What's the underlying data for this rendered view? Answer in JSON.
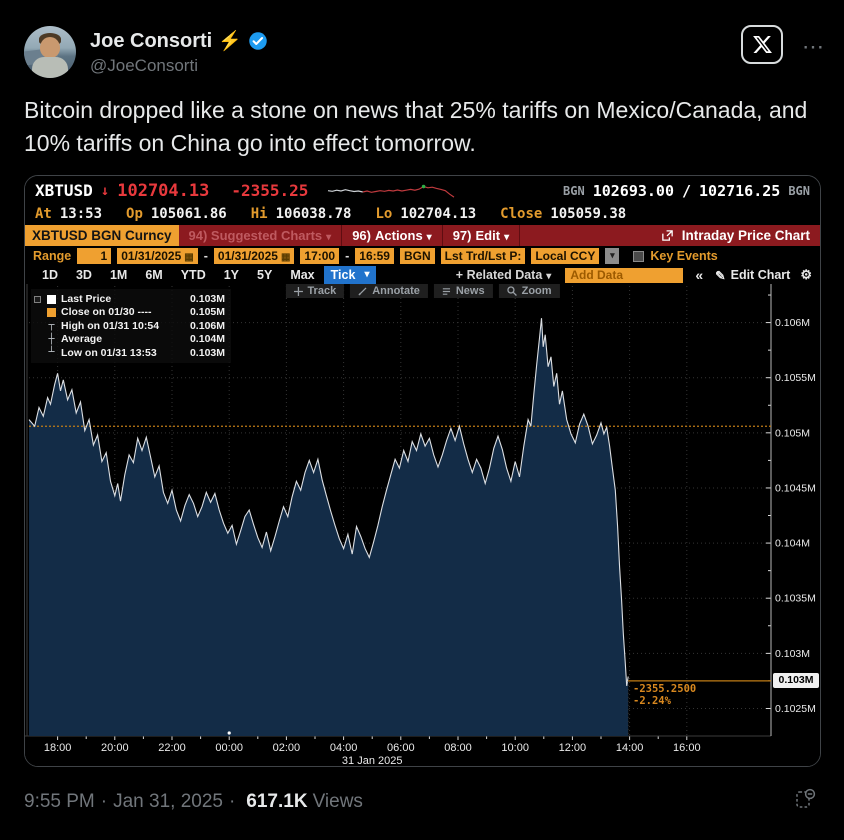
{
  "tweet": {
    "author": {
      "name": "Joe Consorti",
      "zap": "⚡",
      "handle": "@JoeConsorti"
    },
    "text": "Bitcoin dropped like a stone on news that 25% tariffs on Mexico/Canada, and 10% tariffs on China go into effect tomorrow.",
    "footer": {
      "time": "9:55 PM",
      "sep": "·",
      "date": "Jan 31, 2025",
      "views_count": "617.1K",
      "views_label": "Views"
    }
  },
  "icons": {
    "more": "⋯",
    "gear": "⚙",
    "pencil": "✎",
    "collapse": "«",
    "dropdown": "▾",
    "calendar": "▦",
    "down_arrow": "↓"
  },
  "terminal": {
    "quote": {
      "ticker": "XBTUSD",
      "direction_arrow": "↓",
      "last": "102704.13",
      "change": "-2355.25",
      "src_left": "BGN",
      "bid": "102693.00",
      "slash": "/",
      "ask": "102716.25",
      "src_right": "BGN",
      "at_label": "At",
      "at_value": "13:53",
      "open_label": "Op",
      "open_value": "105061.86",
      "high_label": "Hi",
      "high_value": "106038.78",
      "low_label": "Lo",
      "low_value": "102704.13",
      "close_label": "Close",
      "close_value": "105059.38",
      "spark": [
        0.52,
        0.48,
        0.55,
        0.5,
        0.58,
        0.52,
        0.47,
        0.5,
        0.44,
        0.5,
        0.42,
        0.47,
        0.52,
        0.48,
        0.54,
        0.5,
        0.56,
        0.5,
        0.55,
        0.6,
        0.55,
        0.62,
        0.78,
        0.7,
        0.74,
        0.66,
        0.6,
        0.52,
        0.3,
        0.12
      ]
    },
    "menubar": {
      "security": "XBTUSD BGN Curncy",
      "suggested": "94) Suggested Charts",
      "actions_num": "96)",
      "actions": "Actions",
      "edit_num": "97)",
      "edit": "Edit",
      "chart_title": "Intraday Price Chart"
    },
    "rangebar": {
      "range_label": "Range",
      "range_value": "1",
      "date_from": "01/31/2025",
      "date_sep": "-",
      "date_to": "01/31/2025",
      "time_from": "17:00",
      "time_sep": "-",
      "time_to": "16:59",
      "source": "BGN",
      "price_field": "Lst Trd/Lst P:",
      "currency": "Local CCY",
      "key_events_label": "Key Events"
    },
    "periodbar": {
      "tabs": [
        "1D",
        "3D",
        "1M",
        "6M",
        "YTD",
        "1Y",
        "5Y",
        "Max"
      ],
      "selected_tab": "Tick",
      "related_data": "+ Related Data",
      "add_data_placeholder": "Add Data",
      "edit_chart": "Edit Chart"
    },
    "chart_toolbar": [
      "Track",
      "Annotate",
      "News",
      "Zoom"
    ]
  },
  "chart_data": {
    "type": "area",
    "title": "Intraday Price Chart",
    "instrument": "XBTUSD",
    "x_date_label": "31 Jan 2025",
    "x_axis": [
      {
        "label": "18:00",
        "t": 1
      },
      {
        "label": "20:00",
        "t": 3
      },
      {
        "label": "22:00",
        "t": 5
      },
      {
        "label": "00:00",
        "t": 7
      },
      {
        "label": "02:00",
        "t": 9
      },
      {
        "label": "04:00",
        "t": 11
      },
      {
        "label": "06:00",
        "t": 13
      },
      {
        "label": "08:00",
        "t": 15
      },
      {
        "label": "10:00",
        "t": 17
      },
      {
        "label": "12:00",
        "t": 19
      },
      {
        "label": "14:00",
        "t": 21
      },
      {
        "label": "16:00",
        "t": 23
      }
    ],
    "y_axis": [
      {
        "label": "0.106M",
        "value": 106000
      },
      {
        "label": "0.1055M",
        "value": 105500
      },
      {
        "label": "0.105M",
        "value": 105000
      },
      {
        "label": "0.1045M",
        "value": 104500
      },
      {
        "label": "0.104M",
        "value": 104000
      },
      {
        "label": "0.1035M",
        "value": 103500
      },
      {
        "label": "0.103M",
        "value": 103000
      },
      {
        "label": "0.1025M",
        "value": 102500
      }
    ],
    "y_range": [
      102250,
      106350
    ],
    "prev_close": 105059.38,
    "high": {
      "time": "10:54",
      "value": 106038.78
    },
    "low": {
      "time": "13:53",
      "value": 102704.13
    },
    "annotation": {
      "price": 102750,
      "change": "-2355.2500",
      "pct": "-2.24%"
    },
    "last_badge": "0.103M",
    "legend": [
      {
        "marker": "white-square",
        "label": "Last Price",
        "value": "0.103M"
      },
      {
        "marker": "orange-square",
        "label": "Close on 01/30 ----",
        "value": "0.105M"
      },
      {
        "marker": "high",
        "label": "High on 01/31 10:54",
        "value": "0.106M"
      },
      {
        "marker": "avg",
        "label": "Average",
        "value": "0.104M"
      },
      {
        "marker": "low",
        "label": "Low on 01/31 13:53",
        "value": "0.103M"
      }
    ],
    "colors": {
      "line": "#dcdfe3",
      "fill": "#132c47",
      "close_line": "#c07c16",
      "annotation": "#d8881f",
      "grid": "#343434",
      "tick_blue": "#2173cc",
      "bar_red": "#8c1a1f",
      "field_amber": "#efa030",
      "price_red": "#e8393d"
    },
    "series": [
      {
        "name": "Last Price",
        "points": [
          [
            0,
            105120
          ],
          [
            0.2,
            105060
          ],
          [
            0.35,
            105230
          ],
          [
            0.5,
            105150
          ],
          [
            0.65,
            105320
          ],
          [
            0.75,
            105260
          ],
          [
            0.9,
            105440
          ],
          [
            1,
            105540
          ],
          [
            1.1,
            105380
          ],
          [
            1.2,
            105480
          ],
          [
            1.35,
            105300
          ],
          [
            1.5,
            105390
          ],
          [
            1.65,
            105180
          ],
          [
            1.8,
            105280
          ],
          [
            1.95,
            105020
          ],
          [
            2.1,
            105120
          ],
          [
            2.25,
            104890
          ],
          [
            2.4,
            104980
          ],
          [
            2.55,
            104740
          ],
          [
            2.7,
            104820
          ],
          [
            2.85,
            104560
          ],
          [
            3,
            104430
          ],
          [
            3.1,
            104540
          ],
          [
            3.2,
            104380
          ],
          [
            3.35,
            104620
          ],
          [
            3.5,
            104800
          ],
          [
            3.65,
            104730
          ],
          [
            3.8,
            104950
          ],
          [
            3.95,
            104840
          ],
          [
            4.1,
            104960
          ],
          [
            4.25,
            104780
          ],
          [
            4.4,
            104600
          ],
          [
            4.55,
            104700
          ],
          [
            4.7,
            104460
          ],
          [
            4.85,
            104360
          ],
          [
            5,
            104480
          ],
          [
            5.15,
            104300
          ],
          [
            5.3,
            104200
          ],
          [
            5.45,
            104340
          ],
          [
            5.6,
            104440
          ],
          [
            5.75,
            104360
          ],
          [
            5.9,
            104240
          ],
          [
            6.05,
            104330
          ],
          [
            6.2,
            104460
          ],
          [
            6.35,
            104370
          ],
          [
            6.5,
            104450
          ],
          [
            6.65,
            104300
          ],
          [
            6.8,
            104180
          ],
          [
            6.95,
            104090
          ],
          [
            7.1,
            104160
          ],
          [
            7.25,
            103990
          ],
          [
            7.4,
            104110
          ],
          [
            7.55,
            104240
          ],
          [
            7.7,
            104300
          ],
          [
            7.85,
            104170
          ],
          [
            8,
            104050
          ],
          [
            8.15,
            103960
          ],
          [
            8.3,
            104100
          ],
          [
            8.45,
            103930
          ],
          [
            8.6,
            104060
          ],
          [
            8.75,
            104200
          ],
          [
            8.9,
            104330
          ],
          [
            9.05,
            104240
          ],
          [
            9.2,
            104420
          ],
          [
            9.35,
            104560
          ],
          [
            9.5,
            104480
          ],
          [
            9.65,
            104640
          ],
          [
            9.8,
            104750
          ],
          [
            9.95,
            104640
          ],
          [
            10.1,
            104760
          ],
          [
            10.25,
            104570
          ],
          [
            10.4,
            104430
          ],
          [
            10.55,
            104290
          ],
          [
            10.7,
            104160
          ],
          [
            10.85,
            104040
          ],
          [
            11,
            103950
          ],
          [
            11.15,
            104080
          ],
          [
            11.3,
            103900
          ],
          [
            11.45,
            104150
          ],
          [
            11.6,
            104060
          ],
          [
            11.75,
            103950
          ],
          [
            11.9,
            103870
          ],
          [
            12.05,
            104010
          ],
          [
            12.2,
            104160
          ],
          [
            12.35,
            104330
          ],
          [
            12.5,
            104480
          ],
          [
            12.65,
            104620
          ],
          [
            12.8,
            104760
          ],
          [
            12.95,
            104680
          ],
          [
            13.1,
            104840
          ],
          [
            13.25,
            104740
          ],
          [
            13.4,
            104920
          ],
          [
            13.55,
            104840
          ],
          [
            13.7,
            104990
          ],
          [
            13.85,
            104880
          ],
          [
            14,
            104950
          ],
          [
            14.15,
            104800
          ],
          [
            14.3,
            104690
          ],
          [
            14.45,
            104800
          ],
          [
            14.6,
            104930
          ],
          [
            14.75,
            105040
          ],
          [
            14.9,
            104930
          ],
          [
            15.05,
            105060
          ],
          [
            15.2,
            104900
          ],
          [
            15.35,
            104760
          ],
          [
            15.5,
            104640
          ],
          [
            15.65,
            104760
          ],
          [
            15.8,
            104680
          ],
          [
            15.95,
            104540
          ],
          [
            16.1,
            104680
          ],
          [
            16.25,
            104860
          ],
          [
            16.4,
            104970
          ],
          [
            16.55,
            104850
          ],
          [
            16.7,
            104680
          ],
          [
            16.85,
            104560
          ],
          [
            17,
            104740
          ],
          [
            17.15,
            104600
          ],
          [
            17.3,
            104880
          ],
          [
            17.45,
            105120
          ],
          [
            17.55,
            105060
          ],
          [
            17.65,
            105350
          ],
          [
            17.75,
            105620
          ],
          [
            17.85,
            105860
          ],
          [
            17.92,
            106040
          ],
          [
            17.98,
            105780
          ],
          [
            18.05,
            105890
          ],
          [
            18.15,
            105600
          ],
          [
            18.25,
            105690
          ],
          [
            18.35,
            105420
          ],
          [
            18.45,
            105540
          ],
          [
            18.55,
            105260
          ],
          [
            18.65,
            105380
          ],
          [
            18.8,
            105120
          ],
          [
            18.95,
            104990
          ],
          [
            19.1,
            104910
          ],
          [
            19.25,
            105080
          ],
          [
            19.4,
            105170
          ],
          [
            19.55,
            105060
          ],
          [
            19.7,
            104900
          ],
          [
            19.85,
            104980
          ],
          [
            20,
            105090
          ],
          [
            20.1,
            104990
          ],
          [
            20.2,
            105050
          ],
          [
            20.3,
            104880
          ],
          [
            20.4,
            104680
          ],
          [
            20.5,
            104480
          ],
          [
            20.58,
            104150
          ],
          [
            20.65,
            103780
          ],
          [
            20.72,
            103480
          ],
          [
            20.78,
            103180
          ],
          [
            20.84,
            102950
          ],
          [
            20.9,
            102704
          ],
          [
            20.95,
            102790
          ]
        ]
      }
    ]
  }
}
